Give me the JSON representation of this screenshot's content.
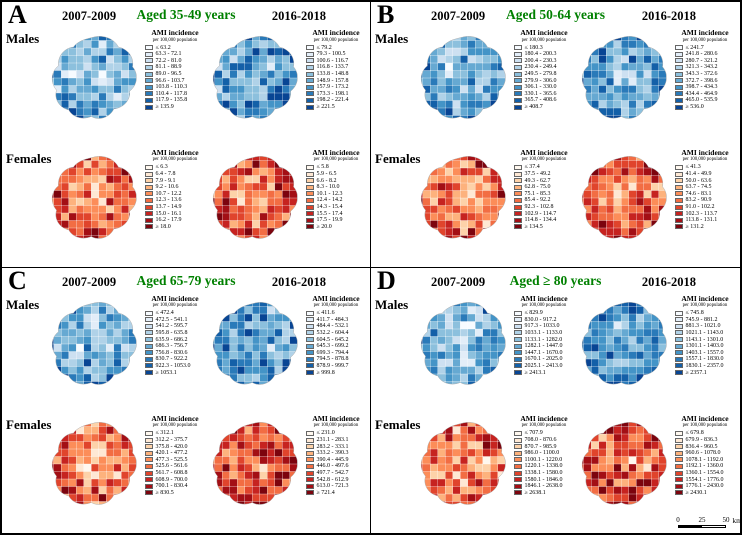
{
  "figure": {
    "colors": {
      "title_green": "#008000",
      "male_palette": [
        "#f7fbff",
        "#e2edf8",
        "#cde0f1",
        "#b0d2e8",
        "#8cc0dd",
        "#66a9d2",
        "#4494c7",
        "#2a7ab9",
        "#1460a8",
        "#084594"
      ],
      "female_palette": [
        "#fff8ef",
        "#fee8d4",
        "#fdd2a9",
        "#fdb27d",
        "#fc8d59",
        "#f26d43",
        "#e0442c",
        "#c62320",
        "#a30f15",
        "#7c040e"
      ]
    },
    "scale_bar": {
      "tick_labels": [
        "0",
        "25",
        "50"
      ],
      "unit": "km"
    },
    "panels": [
      {
        "letter": "A",
        "title": "Aged 35-49 years",
        "period_left": "2007-2009",
        "period_right": "2016-2018",
        "males_label": "Males",
        "females_label": "Females",
        "legend_title": "AMI incidence",
        "legend_subtitle": "per 100,000 population",
        "males": {
          "left_legend": [
            "≤ 63.2",
            "63.3 - 72.1",
            "72.2 - 81.0",
            "81.1 - 88.9",
            "89.0 - 96.5",
            "96.6 - 103.7",
            "103.8 - 110.3",
            "110.4 - 117.8",
            "117.9 - 135.8",
            "≥ 135.9"
          ],
          "right_legend": [
            "≤ 79.2",
            "79.3 - 100.5",
            "100.6 - 116.7",
            "116.8 - 133.7",
            "133.8 - 148.8",
            "148.9 - 157.8",
            "157.9 - 173.2",
            "173.3 - 198.1",
            "198.2 - 221.4",
            "≥ 221.5"
          ]
        },
        "females": {
          "left_legend": [
            "≤ 6.3",
            "6.4 - 7.8",
            "7.9 - 9.1",
            "9.2 - 10.6",
            "10.7 - 12.2",
            "12.3 - 13.6",
            "13.7 - 14.9",
            "15.0 - 16.1",
            "16.2 - 17.9",
            "≥ 18.0"
          ],
          "right_legend": [
            "≤ 5.8",
            "5.9 - 6.5",
            "6.6 - 8.2",
            "8.3 - 10.0",
            "10.1 - 12.3",
            "12.4 - 14.2",
            "14.3 - 15.4",
            "15.5 - 17.4",
            "17.5 - 19.9",
            "≥ 20.0"
          ]
        }
      },
      {
        "letter": "B",
        "title": "Aged 50-64 years",
        "period_left": "2007-2009",
        "period_right": "2016-2018",
        "males_label": "Males",
        "females_label": "Females",
        "legend_title": "AMI incidence",
        "legend_subtitle": "per 100,000 population",
        "males": {
          "left_legend": [
            "≤ 180.3",
            "180.4 - 200.3",
            "200.4 - 230.3",
            "230.4 - 249.4",
            "249.5 - 279.8",
            "279.9 - 306.0",
            "306.1 - 330.0",
            "330.1 - 365.6",
            "365.7 - 408.6",
            "≥ 408.7"
          ],
          "right_legend": [
            "≤ 241.7",
            "241.8 - 280.6",
            "280.7 - 321.2",
            "321.3 - 343.2",
            "343.3 - 372.6",
            "372.7 - 398.6",
            "398.7 - 434.3",
            "434.4 - 464.9",
            "465.0 - 535.9",
            "≥ 536.0"
          ]
        },
        "females": {
          "left_legend": [
            "≤ 37.4",
            "37.5 - 49.2",
            "49.3 - 62.7",
            "62.8 - 75.0",
            "75.1 - 85.3",
            "85.4 - 92.2",
            "92.3 - 102.8",
            "102.9 - 114.7",
            "114.8 - 134.4",
            "≥ 134.5"
          ],
          "right_legend": [
            "≤ 41.3",
            "41.4 - 49.9",
            "50.0 - 63.6",
            "63.7 - 74.5",
            "74.6 - 83.1",
            "83.2 - 90.9",
            "91.0 - 102.2",
            "102.3 - 113.7",
            "113.8 - 131.1",
            "≥ 131.2"
          ]
        }
      },
      {
        "letter": "C",
        "title": "Aged 65-79 years",
        "period_left": "2007-2009",
        "period_right": "2016-2018",
        "males_label": "Males",
        "females_label": "Females",
        "legend_title": "AMI incidence",
        "legend_subtitle": "per 100,000 population",
        "males": {
          "left_legend": [
            "≤ 472.4",
            "472.5 - 541.1",
            "541.2 - 595.7",
            "595.8 - 635.8",
            "635.9 - 686.2",
            "686.3 - 756.7",
            "756.8 - 830.6",
            "830.7 - 922.2",
            "922.3 - 1053.0",
            "≥ 1053.1"
          ],
          "right_legend": [
            "≤ 411.6",
            "411.7 - 484.3",
            "484.4 - 532.1",
            "532.2 - 604.4",
            "604.5 - 645.2",
            "645.3 - 699.2",
            "699.3 - 794.4",
            "794.5 - 878.8",
            "878.9 - 999.7",
            "≥ 999.8"
          ]
        },
        "females": {
          "left_legend": [
            "≤ 312.1",
            "312.2 - 375.7",
            "375.8 - 420.0",
            "420.1 - 477.2",
            "477.3 - 525.5",
            "525.6 - 561.6",
            "561.7 - 608.8",
            "608.9 - 700.0",
            "700.1 - 830.4",
            "≥ 830.5"
          ],
          "right_legend": [
            "≤ 231.0",
            "231.1 - 283.1",
            "283.2 - 333.1",
            "333.2 - 390.3",
            "390.4 - 445.9",
            "446.0 - 497.6",
            "497.7 - 542.7",
            "542.8 - 612.9",
            "613.0 - 721.3",
            "≥ 721.4"
          ]
        }
      },
      {
        "letter": "D",
        "title": "Aged ≥ 80 years",
        "period_left": "2007-2009",
        "period_right": "2016-2018",
        "males_label": "Males",
        "females_label": "Females",
        "legend_title": "AMI incidence",
        "legend_subtitle": "per 100,000 population",
        "has_scale_bar": true,
        "males": {
          "left_legend": [
            "≤ 829.9",
            "830.0 - 917.2",
            "917.3 - 1033.0",
            "1033.1 - 1133.0",
            "1133.1 - 1282.0",
            "1282.1 - 1447.0",
            "1447.1 - 1670.0",
            "1670.1 - 2025.0",
            "2025.1 - 2413.0",
            "≥ 2413.1"
          ],
          "right_legend": [
            "≤ 745.8",
            "745.9 - 881.2",
            "881.3 - 1021.0",
            "1021.1 - 1143.0",
            "1143.1 - 1301.0",
            "1301.1 - 1403.0",
            "1403.1 - 1557.0",
            "1557.1 - 1830.0",
            "1830.1 - 2357.0",
            "≥ 2357.1"
          ]
        },
        "females": {
          "left_legend": [
            "≤ 707.9",
            "708.0 - 870.6",
            "870.7 - 985.9",
            "986.0 - 1100.0",
            "1100.1 - 1220.0",
            "1220.1 - 1338.0",
            "1338.1 - 1580.0",
            "1580.1 - 1846.0",
            "1846.1 - 2638.0",
            "≥ 2638.1"
          ],
          "right_legend": [
            "≤ 679.8",
            "679.9 - 836.3",
            "836.4 - 960.5",
            "960.6 - 1078.0",
            "1078.1 - 1192.0",
            "1192.1 - 1360.0",
            "1360.1 - 1554.0",
            "1554.1 - 1776.0",
            "1776.1 - 2430.0",
            "≥ 2430.1"
          ]
        }
      }
    ]
  }
}
